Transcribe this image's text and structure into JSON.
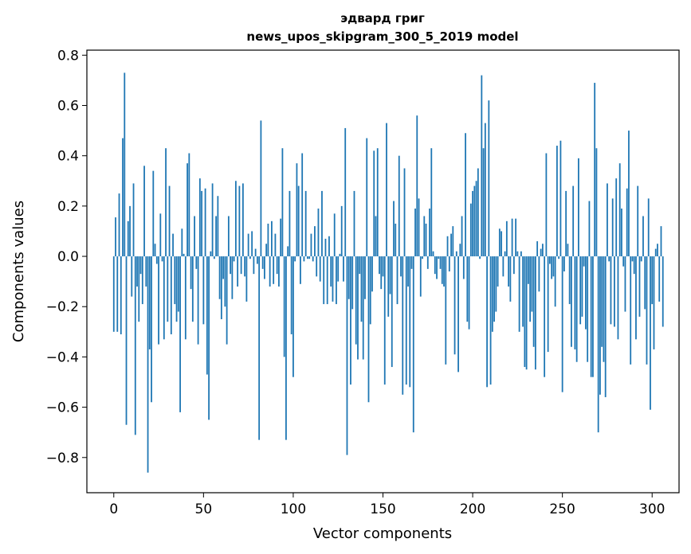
{
  "chart_data": {
    "type": "bar",
    "title_lines": [
      "эдвард григ",
      "news_upos_skipgram_300_5_2019 model"
    ],
    "xlabel": "Vector components",
    "ylabel": "Components values",
    "xlim": [
      -15,
      315
    ],
    "ylim": [
      -0.94,
      0.82
    ],
    "x_ticks": [
      0,
      50,
      100,
      150,
      200,
      250,
      300
    ],
    "x_tick_labels": [
      "0",
      "50",
      "100",
      "150",
      "200",
      "250",
      "300"
    ],
    "y_ticks": [
      0.8,
      0.6,
      0.4,
      0.2,
      0.0,
      -0.2,
      -0.4,
      -0.6,
      -0.8
    ],
    "y_tick_labels": [
      "0.8",
      "0.6",
      "0.4",
      "0.2",
      "0.0",
      "−0.2",
      "−0.4",
      "−0.6",
      "−0.8"
    ],
    "bar_color": "#1f77b4",
    "grid": false,
    "values": [
      -0.3,
      0.155,
      -0.3,
      0.25,
      -0.31,
      0.47,
      0.73,
      -0.67,
      0.14,
      0.2,
      -0.16,
      0.29,
      -0.71,
      -0.12,
      -0.26,
      -0.07,
      -0.19,
      0.36,
      -0.12,
      -0.86,
      -0.37,
      -0.58,
      0.34,
      0.05,
      -0.03,
      -0.35,
      0.17,
      -0.02,
      -0.33,
      0.43,
      -0.26,
      0.28,
      -0.31,
      0.09,
      -0.19,
      -0.26,
      -0.22,
      -0.62,
      0.11,
      0.01,
      -0.33,
      0.37,
      0.41,
      -0.13,
      -0.26,
      0.16,
      -0.05,
      -0.35,
      0.31,
      0.26,
      -0.27,
      0.27,
      -0.47,
      -0.65,
      0.02,
      0.29,
      -0.01,
      0.16,
      0.24,
      -0.17,
      -0.25,
      -0.09,
      -0.2,
      -0.35,
      0.16,
      -0.07,
      -0.17,
      -0.02,
      0.3,
      -0.12,
      0.28,
      -0.07,
      0.29,
      -0.08,
      -0.18,
      0.09,
      -0.01,
      0.1,
      -0.07,
      0.03,
      -0.03,
      -0.73,
      0.54,
      -0.05,
      -0.09,
      0.05,
      0.13,
      -0.12,
      0.14,
      -0.11,
      0.09,
      -0.07,
      -0.12,
      0.15,
      0.43,
      -0.4,
      -0.73,
      0.04,
      0.26,
      -0.31,
      -0.48,
      -0.02,
      0.37,
      0.28,
      -0.11,
      0.41,
      -0.02,
      0.26,
      -0.01,
      -0.01,
      0.09,
      -0.02,
      0.12,
      -0.08,
      0.19,
      -0.1,
      0.26,
      -0.19,
      0.07,
      -0.19,
      0.08,
      -0.12,
      -0.18,
      0.17,
      -0.19,
      -0.1,
      0.01,
      0.2,
      -0.1,
      0.51,
      -0.79,
      -0.17,
      -0.51,
      -0.21,
      0.26,
      -0.35,
      -0.41,
      -0.07,
      -0.26,
      -0.41,
      -0.17,
      0.47,
      -0.58,
      -0.27,
      -0.14,
      0.42,
      0.16,
      0.43,
      -0.07,
      -0.13,
      -0.08,
      -0.51,
      0.53,
      -0.24,
      -0.15,
      -0.44,
      0.22,
      0.13,
      -0.19,
      0.4,
      -0.08,
      -0.55,
      0.35,
      -0.51,
      -0.12,
      -0.52,
      -0.05,
      -0.7,
      0.19,
      0.56,
      0.23,
      -0.16,
      -0.01,
      0.16,
      0.13,
      -0.05,
      0.19,
      0.43,
      0.02,
      -0.07,
      -0.09,
      -0.01,
      -0.05,
      -0.11,
      -0.12,
      -0.43,
      0.08,
      -0.06,
      0.09,
      0.12,
      -0.39,
      0.02,
      -0.46,
      0.05,
      0.16,
      -0.09,
      0.49,
      -0.26,
      -0.29,
      0.21,
      0.26,
      0.28,
      0.3,
      0.35,
      -0.01,
      0.72,
      0.43,
      0.53,
      -0.52,
      0.62,
      -0.51,
      -0.3,
      -0.26,
      -0.22,
      -0.12,
      0.11,
      0.1,
      -0.08,
      0.02,
      0.14,
      -0.12,
      -0.18,
      0.15,
      -0.07,
      0.15,
      0.02,
      -0.3,
      0.02,
      -0.28,
      -0.44,
      -0.45,
      -0.11,
      -0.26,
      -0.22,
      -0.36,
      -0.45,
      0.06,
      -0.14,
      0.03,
      0.05,
      -0.48,
      0.41,
      -0.38,
      -0.03,
      -0.09,
      -0.08,
      -0.2,
      0.44,
      -0.01,
      0.46,
      -0.54,
      -0.06,
      0.26,
      0.05,
      -0.19,
      -0.36,
      0.28,
      -0.37,
      -0.42,
      0.39,
      -0.27,
      -0.24,
      -0.04,
      -0.29,
      -0.42,
      0.22,
      -0.48,
      -0.48,
      0.69,
      0.43,
      -0.7,
      -0.55,
      -0.36,
      -0.42,
      -0.56,
      0.29,
      -0.02,
      -0.27,
      0.23,
      -0.28,
      0.31,
      -0.33,
      0.37,
      0.19,
      -0.04,
      -0.22,
      0.27,
      0.5,
      -0.43,
      -0.02,
      -0.07,
      -0.33,
      0.28,
      -0.24,
      -0.02,
      0.16,
      -0.21,
      -0.43,
      0.23,
      -0.61,
      -0.19,
      -0.37,
      0.03,
      0.05,
      -0.18,
      0.12,
      -0.28
    ]
  }
}
